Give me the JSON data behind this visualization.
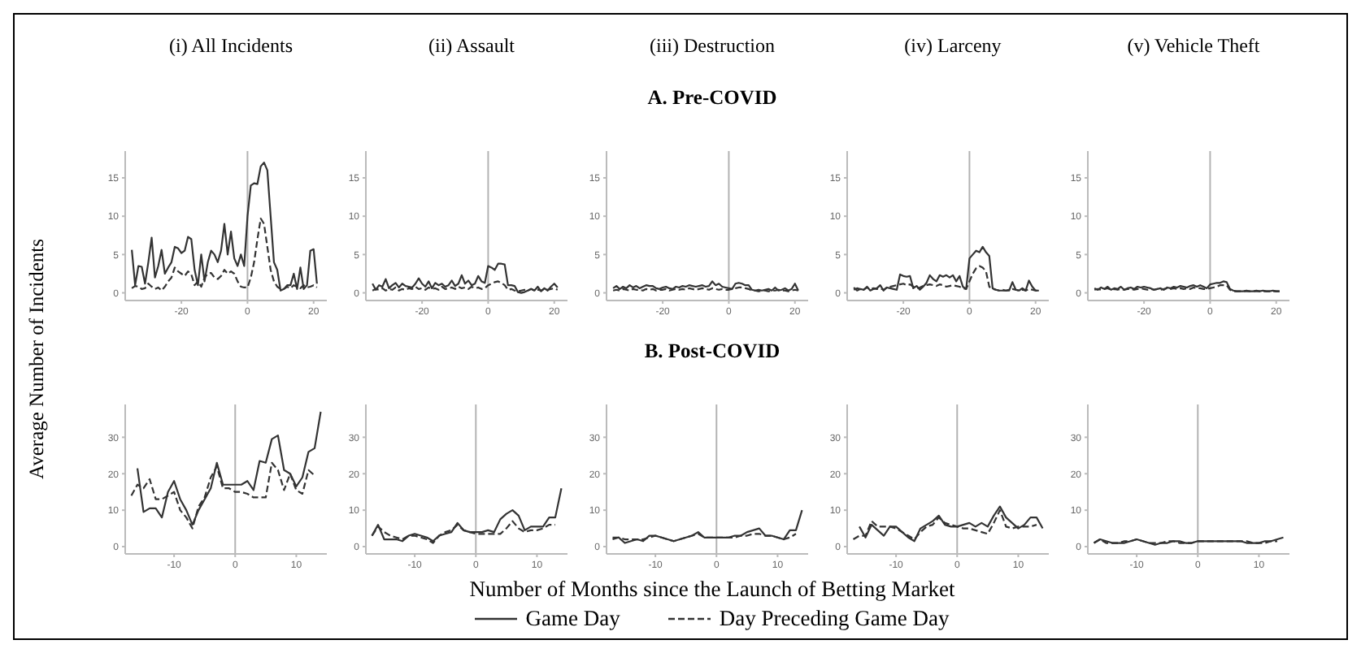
{
  "chart_data": [
    {
      "type": "line",
      "title": "(i) All Incidents",
      "ylabel": "Average Number of Incidents",
      "xlim": [
        -37,
        24
      ],
      "xticks": [
        -20,
        0,
        20
      ],
      "ylim": [
        -1,
        18.5
      ],
      "yticks": [
        0,
        5,
        10,
        15
      ],
      "ref_lines": [
        {
          "axis": "x",
          "value": 0,
          "color": "#b3b3b3"
        }
      ],
      "x": [
        -35,
        -34,
        -33,
        -32,
        -31,
        -30,
        -29,
        -28,
        -27,
        -26,
        -25,
        -24,
        -23,
        -22,
        -21,
        -20,
        -19,
        -18,
        -17,
        -16,
        -15,
        -14,
        -13,
        -12,
        -11,
        -10,
        -9,
        -8,
        -7,
        -6,
        -5,
        -4,
        -3,
        -2,
        -1,
        0,
        1,
        2,
        3,
        4,
        5,
        6,
        7,
        8,
        9,
        10,
        11,
        12,
        13,
        14,
        15,
        16,
        17,
        18,
        19,
        20,
        21
      ],
      "series": [
        {
          "color": "#333333",
          "line_style": "solid",
          "values": [
            5.6,
            1,
            3.5,
            3.4,
            1.2,
            4,
            7.2,
            2,
            3.5,
            5.6,
            2.5,
            3.3,
            4,
            6,
            5.8,
            5.2,
            5.5,
            7.3,
            7,
            3,
            1,
            5,
            1.5,
            4,
            5.5,
            5,
            4,
            5.5,
            9,
            5,
            8,
            4.5,
            3.5,
            5,
            3.5,
            10,
            14,
            14.3,
            14.2,
            16.5,
            17,
            16,
            10,
            4,
            3,
            0.3,
            0.5,
            1,
            1,
            2.5,
            0.5,
            3.3,
            0.5,
            1,
            5.5,
            5.7,
            1.2
          ]
        },
        {
          "color": "#333333",
          "line_style": "dashed",
          "values": [
            0.6,
            0.9,
            0.8,
            0.5,
            0.6,
            1.2,
            0.8,
            0.5,
            0.7,
            0.3,
            0.8,
            1.5,
            2,
            3.3,
            2.8,
            2.5,
            2.2,
            2.8,
            2.4,
            1,
            1.5,
            0.8,
            2,
            2.5,
            2.6,
            2,
            1.8,
            2.2,
            3,
            2.5,
            2.8,
            2.5,
            1.5,
            0.8,
            0.7,
            0.7,
            2,
            4,
            7,
            9.7,
            9,
            6,
            3,
            1.5,
            0.8,
            0.5,
            0.5,
            0.8,
            0.6,
            1,
            0.8,
            0.6,
            1,
            0.7,
            0.8,
            1,
            0.7
          ]
        }
      ]
    },
    {
      "type": "line",
      "title": "(ii) Assault",
      "xlim": [
        -37,
        24
      ],
      "xticks": [
        -20,
        0,
        20
      ],
      "ylim": [
        -1,
        18.5
      ],
      "yticks": [
        0,
        5,
        10,
        15
      ],
      "ref_lines": [
        {
          "axis": "x",
          "value": 0,
          "color": "#b3b3b3"
        }
      ],
      "x": [
        -35,
        -34,
        -33,
        -32,
        -31,
        -30,
        -29,
        -28,
        -27,
        -26,
        -25,
        -24,
        -23,
        -22,
        -21,
        -20,
        -19,
        -18,
        -17,
        -16,
        -15,
        -14,
        -13,
        -12,
        -11,
        -10,
        -9,
        -8,
        -7,
        -6,
        -5,
        -4,
        -3,
        -2,
        -1,
        0,
        1,
        2,
        3,
        4,
        5,
        6,
        7,
        8,
        9,
        10,
        11,
        12,
        13,
        14,
        15,
        16,
        17,
        18,
        19,
        20,
        21
      ],
      "series": [
        {
          "color": "#333333",
          "line_style": "solid",
          "values": [
            1.2,
            0.4,
            1,
            0.8,
            1.8,
            0.6,
            1,
            1.3,
            0.7,
            1.2,
            0.9,
            0.8,
            0.7,
            1.2,
            1.9,
            1.2,
            0.8,
            1.5,
            0.6,
            1.3,
            1,
            1.2,
            0.8,
            1,
            1.6,
            0.9,
            1.2,
            2.3,
            1.2,
            1.6,
            1,
            1.2,
            2.2,
            1.5,
            1.3,
            3.5,
            3.3,
            3,
            3.8,
            3.8,
            3.7,
            1,
            1,
            0.9,
            0.1,
            0,
            0.1,
            0.3,
            0.5,
            0.3,
            0.8,
            0.2,
            0.6,
            0.3,
            0.8,
            1.2,
            0.7
          ]
        },
        {
          "color": "#333333",
          "line_style": "dashed",
          "values": [
            0.3,
            0.5,
            0.4,
            0.6,
            0.3,
            0.5,
            0.4,
            0.7,
            0.3,
            0.5,
            0.4,
            0.6,
            0.5,
            0.8,
            0.5,
            0.6,
            0.4,
            0.7,
            0.5,
            0.6,
            0.4,
            0.8,
            0.5,
            0.6,
            0.7,
            0.5,
            0.8,
            0.6,
            0.7,
            0.5,
            0.8,
            0.6,
            0.7,
            0.5,
            0.6,
            1,
            1.2,
            1.4,
            1.5,
            1.3,
            1,
            0.4,
            0.5,
            0.3,
            0.2,
            0.3,
            0.4,
            0.3,
            0.5,
            0.3,
            0.4,
            0.3,
            0.5,
            0.4,
            0.5,
            0.6,
            0.4
          ]
        }
      ]
    },
    {
      "type": "line",
      "title": "(iii) Destruction",
      "subtitle": "A. Pre-COVID",
      "xlim": [
        -37,
        24
      ],
      "xticks": [
        -20,
        0,
        20
      ],
      "ylim": [
        -1,
        18.5
      ],
      "yticks": [
        0,
        5,
        10,
        15
      ],
      "ref_lines": [
        {
          "axis": "x",
          "value": 0,
          "color": "#b3b3b3"
        }
      ],
      "x": [
        -35,
        -34,
        -33,
        -32,
        -31,
        -30,
        -29,
        -28,
        -27,
        -26,
        -25,
        -24,
        -23,
        -22,
        -21,
        -20,
        -19,
        -18,
        -17,
        -16,
        -15,
        -14,
        -13,
        -12,
        -11,
        -10,
        -9,
        -8,
        -7,
        -6,
        -5,
        -4,
        -3,
        -2,
        -1,
        0,
        1,
        2,
        3,
        4,
        5,
        6,
        7,
        8,
        9,
        10,
        11,
        12,
        13,
        14,
        15,
        16,
        17,
        18,
        19,
        20,
        21
      ],
      "series": [
        {
          "color": "#333333",
          "line_style": "solid",
          "values": [
            0.6,
            0.9,
            0.5,
            0.8,
            0.6,
            1,
            0.7,
            0.9,
            0.6,
            0.8,
            1,
            0.9,
            0.9,
            0.6,
            0.5,
            0.7,
            0.8,
            0.6,
            0.5,
            0.8,
            0.7,
            0.9,
            0.8,
            1,
            0.9,
            0.8,
            0.9,
            1,
            0.8,
            0.9,
            1.5,
            1,
            1.2,
            0.8,
            0.7,
            0.6,
            0.5,
            1.2,
            1.3,
            1.2,
            1,
            1,
            0.4,
            0.3,
            0.4,
            0.3,
            0.4,
            0.5,
            0.3,
            0.7,
            0.3,
            0.4,
            0.6,
            0.3,
            0.5,
            1.2,
            0.3
          ]
        },
        {
          "color": "#333333",
          "line_style": "dashed",
          "values": [
            0.3,
            0.4,
            0.3,
            0.5,
            0.4,
            0.3,
            0.5,
            0.4,
            0.4,
            0.3,
            0.5,
            0.4,
            0.5,
            0.3,
            0.4,
            0.4,
            0.5,
            0.3,
            0.4,
            0.5,
            0.4,
            0.5,
            0.4,
            0.6,
            0.5,
            0.4,
            0.5,
            0.6,
            0.5,
            0.4,
            0.6,
            0.5,
            0.4,
            0.5,
            0.4,
            0.4,
            0.5,
            0.6,
            0.7,
            0.7,
            0.6,
            0.5,
            0.3,
            0.3,
            0.2,
            0.3,
            0.3,
            0.2,
            0.3,
            0.3,
            0.4,
            0.3,
            0.3,
            0.2,
            0.3,
            0.4,
            0.3
          ]
        }
      ]
    },
    {
      "type": "line",
      "title": "(iv) Larceny",
      "xlim": [
        -37,
        24
      ],
      "xticks": [
        -20,
        0,
        20
      ],
      "ylim": [
        -1,
        18.5
      ],
      "yticks": [
        0,
        5,
        10,
        15
      ],
      "ref_lines": [
        {
          "axis": "x",
          "value": 0,
          "color": "#b3b3b3"
        }
      ],
      "x": [
        -35,
        -34,
        -33,
        -32,
        -31,
        -30,
        -29,
        -28,
        -27,
        -26,
        -25,
        -24,
        -23,
        -22,
        -21,
        -20,
        -19,
        -18,
        -17,
        -16,
        -15,
        -14,
        -13,
        -12,
        -11,
        -10,
        -9,
        -8,
        -7,
        -6,
        -5,
        -4,
        -3,
        -2,
        -1,
        0,
        1,
        2,
        3,
        4,
        5,
        6,
        7,
        8,
        9,
        10,
        11,
        12,
        13,
        14,
        15,
        16,
        17,
        18,
        19,
        20,
        21
      ],
      "series": [
        {
          "color": "#333333",
          "line_style": "solid",
          "values": [
            0.7,
            0.3,
            0.5,
            0.4,
            0.8,
            0.3,
            0.5,
            0.6,
            1,
            0.3,
            0.7,
            0.6,
            0.5,
            0.4,
            2.4,
            2.2,
            2.1,
            2.2,
            0.6,
            0.9,
            0.4,
            0.8,
            1.3,
            2.3,
            1.8,
            1.5,
            2.3,
            2.1,
            2.3,
            2,
            2.3,
            1.5,
            2.2,
            0.8,
            0.5,
            4.5,
            5,
            5.5,
            5.3,
            6,
            5.3,
            4.8,
            0.6,
            0.4,
            0.3,
            0.3,
            0.3,
            0.3,
            1.4,
            0.4,
            0.3,
            0.6,
            0.3,
            1.6,
            0.8,
            0.3,
            0.3
          ]
        },
        {
          "color": "#333333",
          "line_style": "dashed",
          "values": [
            0.4,
            0.6,
            0.5,
            0.4,
            0.7,
            0.5,
            0.6,
            0.5,
            0.6,
            0.4,
            0.7,
            0.8,
            0.9,
            1,
            1.1,
            1.2,
            1,
            1.1,
            0.8,
            0.6,
            0.7,
            0.9,
            1,
            1.1,
            1,
            0.9,
            1.1,
            1,
            0.8,
            0.9,
            1,
            0.9,
            0.8,
            0.6,
            0.5,
            1.5,
            2.5,
            3.2,
            3.5,
            3.3,
            2.8,
            0.8,
            0.5,
            0.4,
            0.3,
            0.4,
            0.3,
            0.4,
            0.5,
            0.4,
            0.3,
            0.4,
            0.3,
            0.5,
            0.4,
            0.3,
            0.3
          ]
        }
      ]
    },
    {
      "type": "line",
      "title": "(v) Vehicle Theft",
      "xlim": [
        -37,
        24
      ],
      "xticks": [
        -20,
        0,
        20
      ],
      "ylim": [
        -1,
        18.5
      ],
      "yticks": [
        0,
        5,
        10,
        15
      ],
      "ref_lines": [
        {
          "axis": "x",
          "value": 0,
          "color": "#b3b3b3"
        }
      ],
      "x": [
        -35,
        -34,
        -33,
        -32,
        -31,
        -30,
        -29,
        -28,
        -27,
        -26,
        -25,
        -24,
        -23,
        -22,
        -21,
        -20,
        -19,
        -18,
        -17,
        -16,
        -15,
        -14,
        -13,
        -12,
        -11,
        -10,
        -9,
        -8,
        -7,
        -6,
        -5,
        -4,
        -3,
        -2,
        -1,
        0,
        1,
        2,
        3,
        4,
        5,
        6,
        7,
        8,
        9,
        10,
        11,
        12,
        13,
        14,
        15,
        16,
        17,
        18,
        19,
        20,
        21
      ],
      "series": [
        {
          "color": "#333333",
          "line_style": "solid",
          "values": [
            0.6,
            0.4,
            0.7,
            0.5,
            0.8,
            0.4,
            0.6,
            0.5,
            0.8,
            0.4,
            0.6,
            0.7,
            0.5,
            0.8,
            0.7,
            0.8,
            0.7,
            0.6,
            0.4,
            0.5,
            0.6,
            0.4,
            0.7,
            0.6,
            0.8,
            0.7,
            0.9,
            0.8,
            0.7,
            0.9,
            1,
            0.8,
            1,
            0.8,
            0.6,
            1.1,
            1.2,
            1.3,
            1.3,
            1.5,
            1.4,
            0.5,
            0.3,
            0.2,
            0.2,
            0.2,
            0.3,
            0.2,
            0.2,
            0.3,
            0.2,
            0.3,
            0.2,
            0.2,
            0.3,
            0.2,
            0.2
          ]
        },
        {
          "color": "#333333",
          "line_style": "dashed",
          "values": [
            0.4,
            0.5,
            0.4,
            0.5,
            0.6,
            0.4,
            0.5,
            0.4,
            0.5,
            0.4,
            0.5,
            0.5,
            0.4,
            0.5,
            0.6,
            0.5,
            0.4,
            0.5,
            0.4,
            0.5,
            0.4,
            0.5,
            0.6,
            0.5,
            0.6,
            0.5,
            0.6,
            0.5,
            0.6,
            0.5,
            0.7,
            0.6,
            0.6,
            0.5,
            0.5,
            0.6,
            0.7,
            0.8,
            1,
            1,
            1,
            0.4,
            0.2,
            0.2,
            0.2,
            0.2,
            0.2,
            0.2,
            0.2,
            0.2,
            0.2,
            0.2,
            0.2,
            0.2,
            0.2,
            0.2,
            0.2
          ]
        }
      ]
    },
    {
      "type": "line",
      "xlim": [
        -18,
        15
      ],
      "xticks": [
        -10,
        0,
        10
      ],
      "ylim": [
        -2,
        39
      ],
      "yticks": [
        0,
        10,
        20,
        30
      ],
      "ref_lines": [
        {
          "axis": "x",
          "value": 0,
          "color": "#b3b3b3"
        }
      ],
      "x": [
        -17,
        -16,
        -15,
        -14,
        -13,
        -12,
        -11,
        -10,
        -9,
        -8,
        -7,
        -6,
        -5,
        -4,
        -3,
        -2,
        -1,
        0,
        1,
        2,
        3,
        4,
        5,
        6,
        7,
        8,
        9,
        10,
        11,
        12,
        13,
        14
      ],
      "series": [
        {
          "color": "#333333",
          "line_style": "solid",
          "values": [
            null,
            21.5,
            9.5,
            10.5,
            10.5,
            8,
            15,
            18,
            13,
            10,
            6,
            10,
            13,
            16,
            23,
            17,
            17,
            17,
            17,
            18,
            15.5,
            23.5,
            23,
            29.5,
            30.5,
            21,
            20,
            16.5,
            19,
            26,
            27,
            37
          ]
        },
        {
          "color": "#333333",
          "line_style": "dashed",
          "values": [
            14,
            17,
            16,
            18.5,
            13,
            13,
            14,
            15,
            10,
            8,
            5,
            11,
            13.5,
            19,
            22,
            16,
            16,
            15,
            15,
            14.5,
            13.5,
            13.5,
            13.5,
            23,
            21,
            15.5,
            20,
            15.5,
            14.5,
            21,
            19.5,
            null
          ]
        }
      ]
    },
    {
      "type": "line",
      "xlim": [
        -18,
        15
      ],
      "xticks": [
        -10,
        0,
        10
      ],
      "ylim": [
        -2,
        39
      ],
      "yticks": [
        0,
        10,
        20,
        30
      ],
      "ref_lines": [
        {
          "axis": "x",
          "value": 0,
          "color": "#b3b3b3"
        }
      ],
      "x": [
        -17,
        -16,
        -15,
        -14,
        -13,
        -12,
        -11,
        -10,
        -9,
        -8,
        -7,
        -6,
        -5,
        -4,
        -3,
        -2,
        -1,
        0,
        1,
        2,
        3,
        4,
        5,
        6,
        7,
        8,
        9,
        10,
        11,
        12,
        13,
        14
      ],
      "series": [
        {
          "color": "#333333",
          "line_style": "solid",
          "values": [
            3,
            6,
            2,
            2,
            2,
            1.5,
            3,
            3.5,
            3,
            2.5,
            1.5,
            3,
            3.5,
            4,
            6.5,
            4.5,
            4,
            4,
            4,
            4.5,
            4,
            7.5,
            9,
            10,
            8.5,
            4.5,
            5.5,
            5.5,
            5.5,
            8,
            8,
            16
          ]
        },
        {
          "color": "#333333",
          "line_style": "dashed",
          "values": [
            3,
            5.5,
            4,
            3,
            2.5,
            2,
            3,
            3,
            2.5,
            2,
            1,
            3,
            4,
            4.5,
            6,
            4.5,
            4,
            3.5,
            3.5,
            3.5,
            3.5,
            3.5,
            5,
            7,
            5,
            4,
            4.5,
            4.5,
            5,
            6,
            6,
            null
          ]
        }
      ]
    },
    {
      "type": "line",
      "subtitle": "B. Post-COVID",
      "xlabel": "Number of Months since the Launch of Betting Market",
      "legend": "bottom",
      "xlim": [
        -18,
        15
      ],
      "xticks": [
        -10,
        0,
        10
      ],
      "ylim": [
        -2,
        39
      ],
      "yticks": [
        0,
        10,
        20,
        30
      ],
      "ref_lines": [
        {
          "axis": "x",
          "value": 0,
          "color": "#b3b3b3"
        }
      ],
      "x": [
        -17,
        -16,
        -15,
        -14,
        -13,
        -12,
        -11,
        -10,
        -9,
        -8,
        -7,
        -6,
        -5,
        -4,
        -3,
        -2,
        -1,
        0,
        1,
        2,
        3,
        4,
        5,
        6,
        7,
        8,
        9,
        10,
        11,
        12,
        13,
        14
      ],
      "series": [
        {
          "name": "Game Day",
          "color": "#333333",
          "line_style": "solid",
          "values": [
            2,
            2.5,
            1,
            1.5,
            2,
            1.5,
            3,
            3,
            2.5,
            2,
            1.5,
            2,
            2.5,
            3,
            4,
            2.5,
            2.5,
            2.5,
            2.5,
            2.5,
            3,
            3,
            4,
            4.5,
            5,
            3,
            3,
            2.5,
            2,
            4.5,
            4.5,
            10
          ]
        },
        {
          "name": "Day Preceding Game Day",
          "color": "#333333",
          "line_style": "dashed",
          "values": [
            2.5,
            2.5,
            2,
            2,
            2,
            2,
            2.5,
            3,
            2.5,
            2,
            1.5,
            2,
            2.5,
            3,
            3.5,
            2.5,
            2.5,
            2.5,
            2.5,
            2.5,
            2.5,
            3,
            3,
            3.5,
            3.5,
            3,
            3,
            2.5,
            2,
            2.5,
            3.5,
            null
          ]
        }
      ]
    },
    {
      "type": "line",
      "xlim": [
        -18,
        15
      ],
      "xticks": [
        -10,
        0,
        10
      ],
      "ylim": [
        -2,
        39
      ],
      "yticks": [
        0,
        10,
        20,
        30
      ],
      "ref_lines": [
        {
          "axis": "x",
          "value": 0,
          "color": "#b3b3b3"
        }
      ],
      "x": [
        -17,
        -16,
        -15,
        -14,
        -13,
        -12,
        -11,
        -10,
        -9,
        -8,
        -7,
        -6,
        -5,
        -4,
        -3,
        -2,
        -1,
        0,
        1,
        2,
        3,
        4,
        5,
        6,
        7,
        8,
        9,
        10,
        11,
        12,
        13,
        14
      ],
      "series": [
        {
          "color": "#333333",
          "line_style": "solid",
          "values": [
            null,
            5.5,
            2.5,
            6,
            4.5,
            3,
            5.5,
            5.5,
            4,
            2.5,
            1.5,
            5,
            6,
            7,
            8.5,
            6,
            5.5,
            5.5,
            6,
            6.5,
            5.5,
            6.5,
            5.5,
            8.5,
            11,
            8,
            6.5,
            5,
            6,
            8,
            8,
            5
          ]
        },
        {
          "color": "#333333",
          "line_style": "dashed",
          "values": [
            2,
            3,
            3,
            7,
            5.5,
            5.5,
            5.5,
            5,
            4,
            3,
            2,
            4,
            5.5,
            6,
            8,
            6.5,
            6,
            5.5,
            5,
            5,
            4.5,
            4,
            3.5,
            6.5,
            10,
            5.5,
            5,
            5.5,
            5.5,
            5.5,
            6,
            null
          ]
        }
      ]
    },
    {
      "type": "line",
      "xlim": [
        -18,
        15
      ],
      "xticks": [
        -10,
        0,
        10
      ],
      "ylim": [
        -2,
        39
      ],
      "yticks": [
        0,
        10,
        20,
        30
      ],
      "ref_lines": [
        {
          "axis": "x",
          "value": 0,
          "color": "#b3b3b3"
        }
      ],
      "x": [
        -17,
        -16,
        -15,
        -14,
        -13,
        -12,
        -11,
        -10,
        -9,
        -8,
        -7,
        -6,
        -5,
        -4,
        -3,
        -2,
        -1,
        0,
        1,
        2,
        3,
        4,
        5,
        6,
        7,
        8,
        9,
        10,
        11,
        12,
        13,
        14
      ],
      "series": [
        {
          "color": "#333333",
          "line_style": "solid",
          "values": [
            1,
            2,
            1.5,
            1,
            1,
            1,
            1.5,
            2,
            1.5,
            1,
            0.5,
            1,
            1,
            1.5,
            1.5,
            1,
            1,
            1.5,
            1.5,
            1.5,
            1.5,
            1.5,
            1.5,
            1.5,
            1.5,
            1,
            1,
            1,
            1.5,
            1.5,
            2,
            2.5
          ]
        },
        {
          "color": "#333333",
          "line_style": "dashed",
          "values": [
            1,
            2,
            1,
            1,
            1,
            1.5,
            1.5,
            2,
            1.5,
            1,
            1,
            1,
            1.5,
            1.5,
            1,
            1,
            1,
            1.5,
            1.5,
            1.5,
            1.5,
            1.5,
            1.5,
            1.5,
            1.5,
            1.5,
            1,
            1,
            1,
            1.5,
            1.5,
            null
          ]
        }
      ]
    }
  ]
}
